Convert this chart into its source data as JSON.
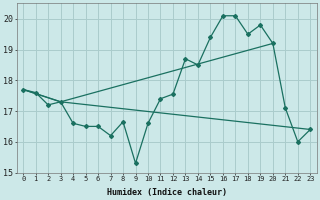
{
  "xlabel": "Humidex (Indice chaleur)",
  "bg_color": "#cce8e8",
  "line_color": "#1a7060",
  "grid_color": "#aacccc",
  "xlim": [
    -0.5,
    23.5
  ],
  "ylim": [
    15.0,
    20.5
  ],
  "yticks": [
    15,
    16,
    17,
    18,
    19,
    20
  ],
  "xticks": [
    0,
    1,
    2,
    3,
    4,
    5,
    6,
    7,
    8,
    9,
    10,
    11,
    12,
    13,
    14,
    15,
    16,
    17,
    18,
    19,
    20,
    21,
    22,
    23
  ],
  "line1_x": [
    0,
    1,
    2,
    3,
    4,
    5,
    6,
    7,
    8,
    9,
    10,
    11,
    12,
    13,
    14,
    15,
    16,
    17,
    18,
    19,
    20,
    21,
    22,
    23
  ],
  "line1_y": [
    17.7,
    17.6,
    17.2,
    17.3,
    16.6,
    16.5,
    16.5,
    16.2,
    16.65,
    15.3,
    16.6,
    17.4,
    17.55,
    18.7,
    18.5,
    19.4,
    20.1,
    20.1,
    19.5,
    19.8,
    19.2,
    17.1,
    16.0,
    16.4
  ],
  "line2_x": [
    0,
    3,
    20
  ],
  "line2_y": [
    17.7,
    17.3,
    19.2
  ],
  "line3_x": [
    0,
    3,
    23
  ],
  "line3_y": [
    17.7,
    17.3,
    16.4
  ],
  "xlabel_fontsize": 6,
  "tick_fontsize": 5
}
